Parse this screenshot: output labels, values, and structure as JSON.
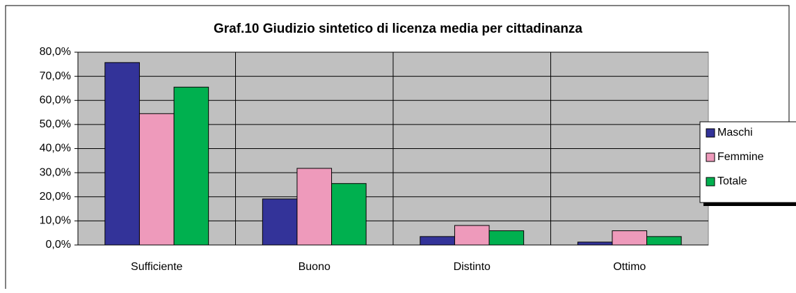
{
  "chart_data": {
    "type": "bar",
    "title": "Graf.10 Giudizio sintetico di licenza media per cittadinanza",
    "categories": [
      "Sufficiente",
      "Buono",
      "Distinto",
      "Ottimo"
    ],
    "series": [
      {
        "name": "Maschi",
        "color": "#333399",
        "values": [
          75.7,
          19.1,
          3.5,
          1.2
        ]
      },
      {
        "name": "Femmine",
        "color": "#ee9abb",
        "values": [
          54.5,
          31.8,
          8.1,
          5.9
        ]
      },
      {
        "name": "Totale",
        "color": "#00b04f",
        "values": [
          65.5,
          25.5,
          5.9,
          3.5
        ]
      }
    ],
    "ylim": [
      0,
      80
    ],
    "yticks": [
      {
        "value": 0,
        "label": "0,0%"
      },
      {
        "value": 10,
        "label": "10,0%"
      },
      {
        "value": 20,
        "label": "20,0%"
      },
      {
        "value": 30,
        "label": "30,0%"
      },
      {
        "value": 40,
        "label": "40,0%"
      },
      {
        "value": 50,
        "label": "50,0%"
      },
      {
        "value": 60,
        "label": "60,0%"
      },
      {
        "value": 70,
        "label": "70,0%"
      },
      {
        "value": 80,
        "label": "80,0%"
      }
    ],
    "grid": true,
    "legend": "right"
  }
}
